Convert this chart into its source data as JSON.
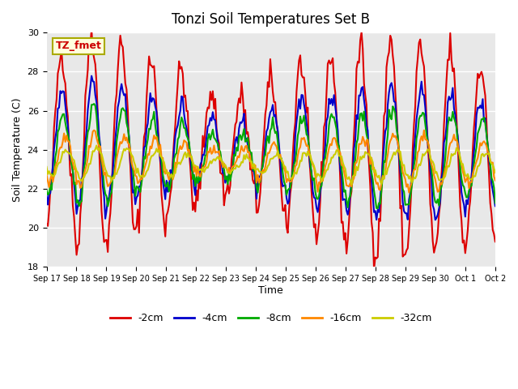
{
  "title": "Tonzi Soil Temperatures Set B",
  "ylabel": "Soil Temperature (C)",
  "xlabel": "Time",
  "ylim": [
    18,
    30
  ],
  "yticks": [
    18,
    20,
    22,
    24,
    26,
    28,
    30
  ],
  "bg_color": "#e8e8e8",
  "fig_color": "#ffffff",
  "annotation_text": "TZ_fmet",
  "annotation_color": "#cc0000",
  "annotation_bg": "#ffffdd",
  "annotation_border": "#aaaa00",
  "series": {
    "-2cm": {
      "color": "#dd0000",
      "lw": 1.5,
      "amplitude": 4.5,
      "mean": 24.5,
      "phase": 0.0,
      "noise": 0.4,
      "trend": -0.04
    },
    "-4cm": {
      "color": "#0000cc",
      "lw": 1.5,
      "amplitude": 2.7,
      "mean": 24.2,
      "phase": 0.18,
      "noise": 0.25,
      "trend": -0.03
    },
    "-8cm": {
      "color": "#00aa00",
      "lw": 1.5,
      "amplitude": 2.0,
      "mean": 23.8,
      "phase": 0.38,
      "noise": 0.2,
      "trend": -0.02
    },
    "-16cm": {
      "color": "#ff8800",
      "lw": 1.5,
      "amplitude": 1.1,
      "mean": 23.5,
      "phase": 0.7,
      "noise": 0.15,
      "trend": -0.01
    },
    "-32cm": {
      "color": "#cccc00",
      "lw": 1.5,
      "amplitude": 0.65,
      "mean": 23.3,
      "phase": 1.15,
      "noise": 0.1,
      "trend": -0.01
    }
  },
  "xtick_labels": [
    "Sep 17",
    "Sep 18",
    "Sep 19",
    "Sep 20",
    "Sep 21",
    "Sep 22",
    "Sep 23",
    "Sep 24",
    "Sep 25",
    "Sep 26",
    "Sep 27",
    "Sep 28",
    "Sep 29",
    "Sep 30",
    "Oct 1",
    "Oct 2"
  ],
  "n_points": 360,
  "n_days": 15
}
